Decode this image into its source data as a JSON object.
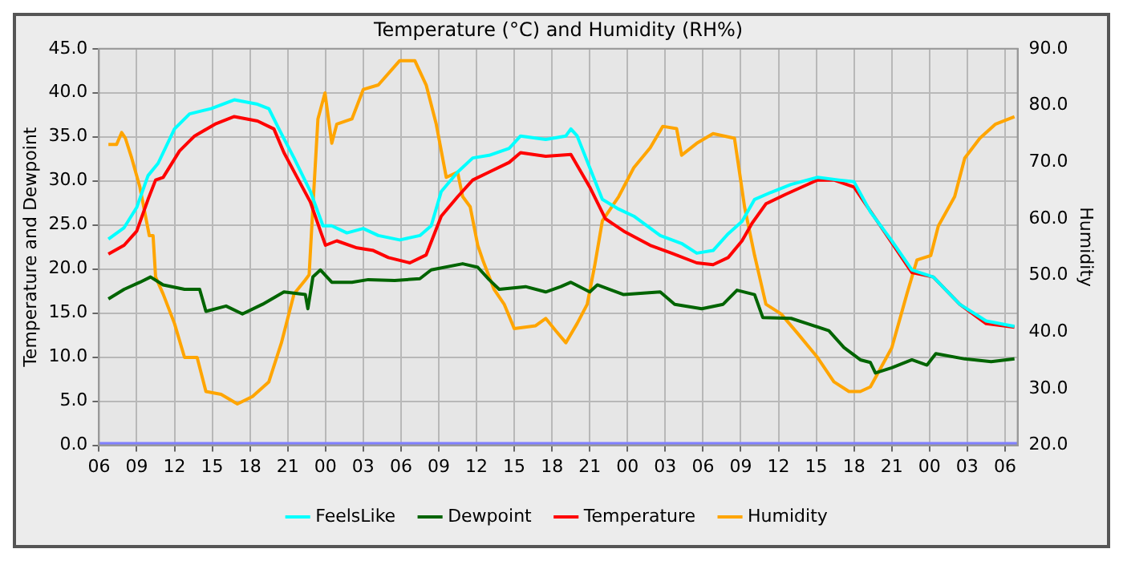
{
  "chart_data": {
    "type": "line",
    "title": "Temperature (°C) and Humidity (RH%)",
    "ylabel": "Temperature and Dewpoint",
    "y2label": "Humidity",
    "xlim": [
      6,
      79
    ],
    "xticks": [
      {
        "value": 6,
        "label": "06"
      },
      {
        "value": 9,
        "label": "09"
      },
      {
        "value": 12,
        "label": "12"
      },
      {
        "value": 15,
        "label": "15"
      },
      {
        "value": 18,
        "label": "18"
      },
      {
        "value": 21,
        "label": "21"
      },
      {
        "value": 24,
        "label": "00"
      },
      {
        "value": 27,
        "label": "03"
      },
      {
        "value": 30,
        "label": "06"
      },
      {
        "value": 33,
        "label": "09"
      },
      {
        "value": 36,
        "label": "12"
      },
      {
        "value": 39,
        "label": "15"
      },
      {
        "value": 42,
        "label": "18"
      },
      {
        "value": 45,
        "label": "21"
      },
      {
        "value": 48,
        "label": "00"
      },
      {
        "value": 51,
        "label": "03"
      },
      {
        "value": 54,
        "label": "06"
      },
      {
        "value": 57,
        "label": "09"
      },
      {
        "value": 60,
        "label": "12"
      },
      {
        "value": 63,
        "label": "15"
      },
      {
        "value": 66,
        "label": "18"
      },
      {
        "value": 69,
        "label": "21"
      },
      {
        "value": 72,
        "label": "00"
      },
      {
        "value": 75,
        "label": "03"
      },
      {
        "value": 78,
        "label": "06"
      }
    ],
    "ylim": [
      0,
      45
    ],
    "yticks": [
      {
        "value": 0,
        "label": "0.0"
      },
      {
        "value": 5,
        "label": "5.0"
      },
      {
        "value": 10,
        "label": "10.0"
      },
      {
        "value": 15,
        "label": "15.0"
      },
      {
        "value": 20,
        "label": "20.0"
      },
      {
        "value": 25,
        "label": "25.0"
      },
      {
        "value": 30,
        "label": "30.0"
      },
      {
        "value": 35,
        "label": "35.0"
      },
      {
        "value": 40,
        "label": "40.0"
      },
      {
        "value": 45,
        "label": "45.0"
      }
    ],
    "y2lim": [
      20,
      90
    ],
    "y2ticks": [
      {
        "value": 20,
        "label": "20.0"
      },
      {
        "value": 30,
        "label": "30.0"
      },
      {
        "value": 40,
        "label": "40.0"
      },
      {
        "value": 50,
        "label": "50.0"
      },
      {
        "value": 60,
        "label": "60.0"
      },
      {
        "value": 70,
        "label": "70.0"
      },
      {
        "value": 80,
        "label": "80.0"
      },
      {
        "value": 90,
        "label": "90.0"
      }
    ],
    "grid": true,
    "legend": "bottom",
    "marker": "none",
    "line_style": "solid",
    "ref_lines": [
      {
        "axis": "y",
        "value": 0,
        "color": "#8080ff"
      }
    ],
    "series": [
      {
        "name": "FeelsLike",
        "color": "#00ffff",
        "x": [
          6.75,
          8,
          9,
          9.9,
          10.7,
          12,
          13.2,
          14.9,
          16.75,
          18.6,
          19.5,
          20.3,
          21.5,
          22.8,
          23.8,
          24.5,
          25.7,
          27,
          28.2,
          29.9,
          31.5,
          32.4,
          33.2,
          34.5,
          35.7,
          37,
          38.6,
          39.5,
          41.5,
          43.1,
          43.5,
          44,
          45,
          46,
          47.3,
          48.5,
          50.6,
          52.3,
          53.5,
          54.8,
          56,
          57.1,
          58.1,
          59.4,
          61,
          63.1,
          64.8,
          66,
          67.3,
          69,
          70.6,
          72.3,
          74.4,
          76.5,
          78.75
        ],
        "values": [
          23.4,
          24.7,
          27,
          30.6,
          32,
          35.9,
          37.6,
          38.2,
          39.2,
          38.7,
          38.2,
          35.9,
          32.6,
          28.8,
          24.9,
          24.9,
          24.1,
          24.6,
          23.8,
          23.3,
          23.8,
          24.9,
          28.8,
          31,
          32.6,
          32.9,
          33.7,
          35.1,
          34.7,
          35.1,
          35.9,
          35.1,
          31.5,
          27.9,
          26.8,
          26,
          23.8,
          22.9,
          21.8,
          22.1,
          24,
          25.4,
          27.9,
          28.7,
          29.6,
          30.4,
          30.1,
          29.9,
          26.5,
          23.2,
          19.9,
          19.1,
          16,
          14.1,
          13.5
        ]
      },
      {
        "name": "Dewpoint",
        "color": "#006400",
        "x": [
          6.75,
          8,
          9.25,
          10.1,
          11.1,
          12.8,
          14,
          14.5,
          16.1,
          17.4,
          19,
          20.7,
          22.4,
          22.6,
          23,
          23.6,
          24.5,
          26.1,
          27.4,
          29.5,
          31.5,
          32.4,
          34.9,
          36.1,
          37,
          37.8,
          39.9,
          41.5,
          42.7,
          43.5,
          45,
          45.6,
          47.7,
          50.6,
          51.75,
          53.9,
          55.6,
          56.7,
          58.1,
          58.75,
          61,
          62.3,
          64,
          65.2,
          66.5,
          67.3,
          67.7,
          69,
          70.6,
          71.8,
          72.5,
          74.8,
          76.9,
          78.75
        ],
        "values": [
          16.6,
          17.7,
          18.5,
          19.1,
          18.2,
          17.7,
          17.7,
          15.2,
          15.8,
          14.9,
          16,
          17.4,
          17.1,
          15.5,
          19.1,
          19.9,
          18.5,
          18.5,
          18.8,
          18.7,
          18.9,
          19.9,
          20.6,
          20.2,
          18.8,
          17.7,
          18,
          17.4,
          18,
          18.5,
          17.4,
          18.2,
          17.1,
          17.4,
          16,
          15.5,
          16,
          17.6,
          17.1,
          14.5,
          14.4,
          13.8,
          13,
          11.1,
          9.7,
          9.4,
          8.2,
          8.8,
          9.7,
          9.1,
          10.4,
          9.8,
          9.5,
          9.8
        ]
      },
      {
        "name": "Temperature",
        "color": "#ff0000",
        "x": [
          6.75,
          8,
          9,
          9.9,
          10.5,
          11.1,
          12.4,
          13.6,
          15.3,
          16.75,
          18.6,
          19.9,
          20.7,
          21.75,
          22.8,
          23.6,
          24,
          24.9,
          26.5,
          27.8,
          29,
          30.7,
          32,
          33.2,
          34.5,
          35.7,
          37,
          38.6,
          39.5,
          41.5,
          43.5,
          45,
          46.25,
          47.7,
          49.8,
          51.5,
          53.5,
          54.8,
          56,
          57.1,
          57.9,
          59,
          60.6,
          63.1,
          64.4,
          66,
          68.1,
          70.6,
          72.3,
          74.4,
          76.5,
          78.75
        ],
        "values": [
          21.7,
          22.7,
          24.3,
          27.9,
          30.1,
          30.4,
          33.4,
          35.1,
          36.5,
          37.3,
          36.8,
          35.9,
          33.2,
          30.4,
          27.6,
          24.3,
          22.7,
          23.2,
          22.4,
          22.1,
          21.3,
          20.7,
          21.6,
          26,
          28.2,
          30.1,
          31,
          32.1,
          33.2,
          32.8,
          33,
          29.3,
          25.7,
          24.3,
          22.7,
          21.8,
          20.7,
          20.5,
          21.3,
          23.2,
          25.2,
          27.4,
          28.5,
          30.1,
          30.1,
          29.3,
          24.9,
          19.6,
          19.1,
          16,
          13.8,
          13.4
        ]
      },
      {
        "name": "Humidity",
        "color": "#ffa500",
        "axis": "y2",
        "x": [
          6.75,
          7.4,
          7.8,
          8.1,
          8.6,
          9.25,
          10,
          10.3,
          10.5,
          11.1,
          12,
          12.8,
          13.8,
          14.5,
          15.7,
          17,
          18.2,
          19.5,
          20.5,
          21.5,
          22.4,
          22.7,
          23,
          23.4,
          23.96,
          24.5,
          24.9,
          26.1,
          27,
          28.2,
          29.9,
          31.1,
          32,
          32.8,
          33.6,
          34.5,
          34.9,
          35.5,
          36.1,
          36.5,
          37.4,
          38.2,
          39,
          40.7,
          41.5,
          42.3,
          43.1,
          44,
          44.8,
          45.4,
          46,
          47.3,
          48.5,
          49.8,
          50.8,
          51.9,
          52.3,
          53.5,
          54.8,
          56.5,
          56.9,
          57.3,
          58.1,
          59,
          60.2,
          61.5,
          63.1,
          64.4,
          65.6,
          66.5,
          67.3,
          69,
          70.2,
          71,
          72.1,
          72.7,
          74,
          74.8,
          76,
          77.25,
          78.75
        ],
        "values": [
          73.1,
          73.1,
          75.2,
          74.2,
          70.7,
          65.6,
          57,
          57,
          49.7,
          46.7,
          41.5,
          35.5,
          35.5,
          29.5,
          29,
          27.3,
          28.6,
          31.2,
          38.1,
          46.7,
          49.2,
          50.1,
          62.1,
          77.6,
          82.2,
          73.3,
          76.7,
          77.6,
          82.8,
          83.6,
          87.9,
          87.9,
          83.6,
          76.7,
          67.3,
          68.2,
          63.9,
          62.1,
          55.3,
          52.7,
          47.5,
          44.9,
          40.6,
          41.1,
          42.4,
          40.2,
          38.1,
          41.5,
          44.9,
          51.8,
          59.6,
          63.9,
          69,
          72.5,
          76.3,
          75.9,
          71.2,
          73.3,
          75,
          74.2,
          68.2,
          62.1,
          53.5,
          44.9,
          43.2,
          39.8,
          35.5,
          31.2,
          29.5,
          29.5,
          30.3,
          37.2,
          46.7,
          52.7,
          53.5,
          58.7,
          63.9,
          70.7,
          74.2,
          76.7,
          78
        ]
      }
    ]
  }
}
